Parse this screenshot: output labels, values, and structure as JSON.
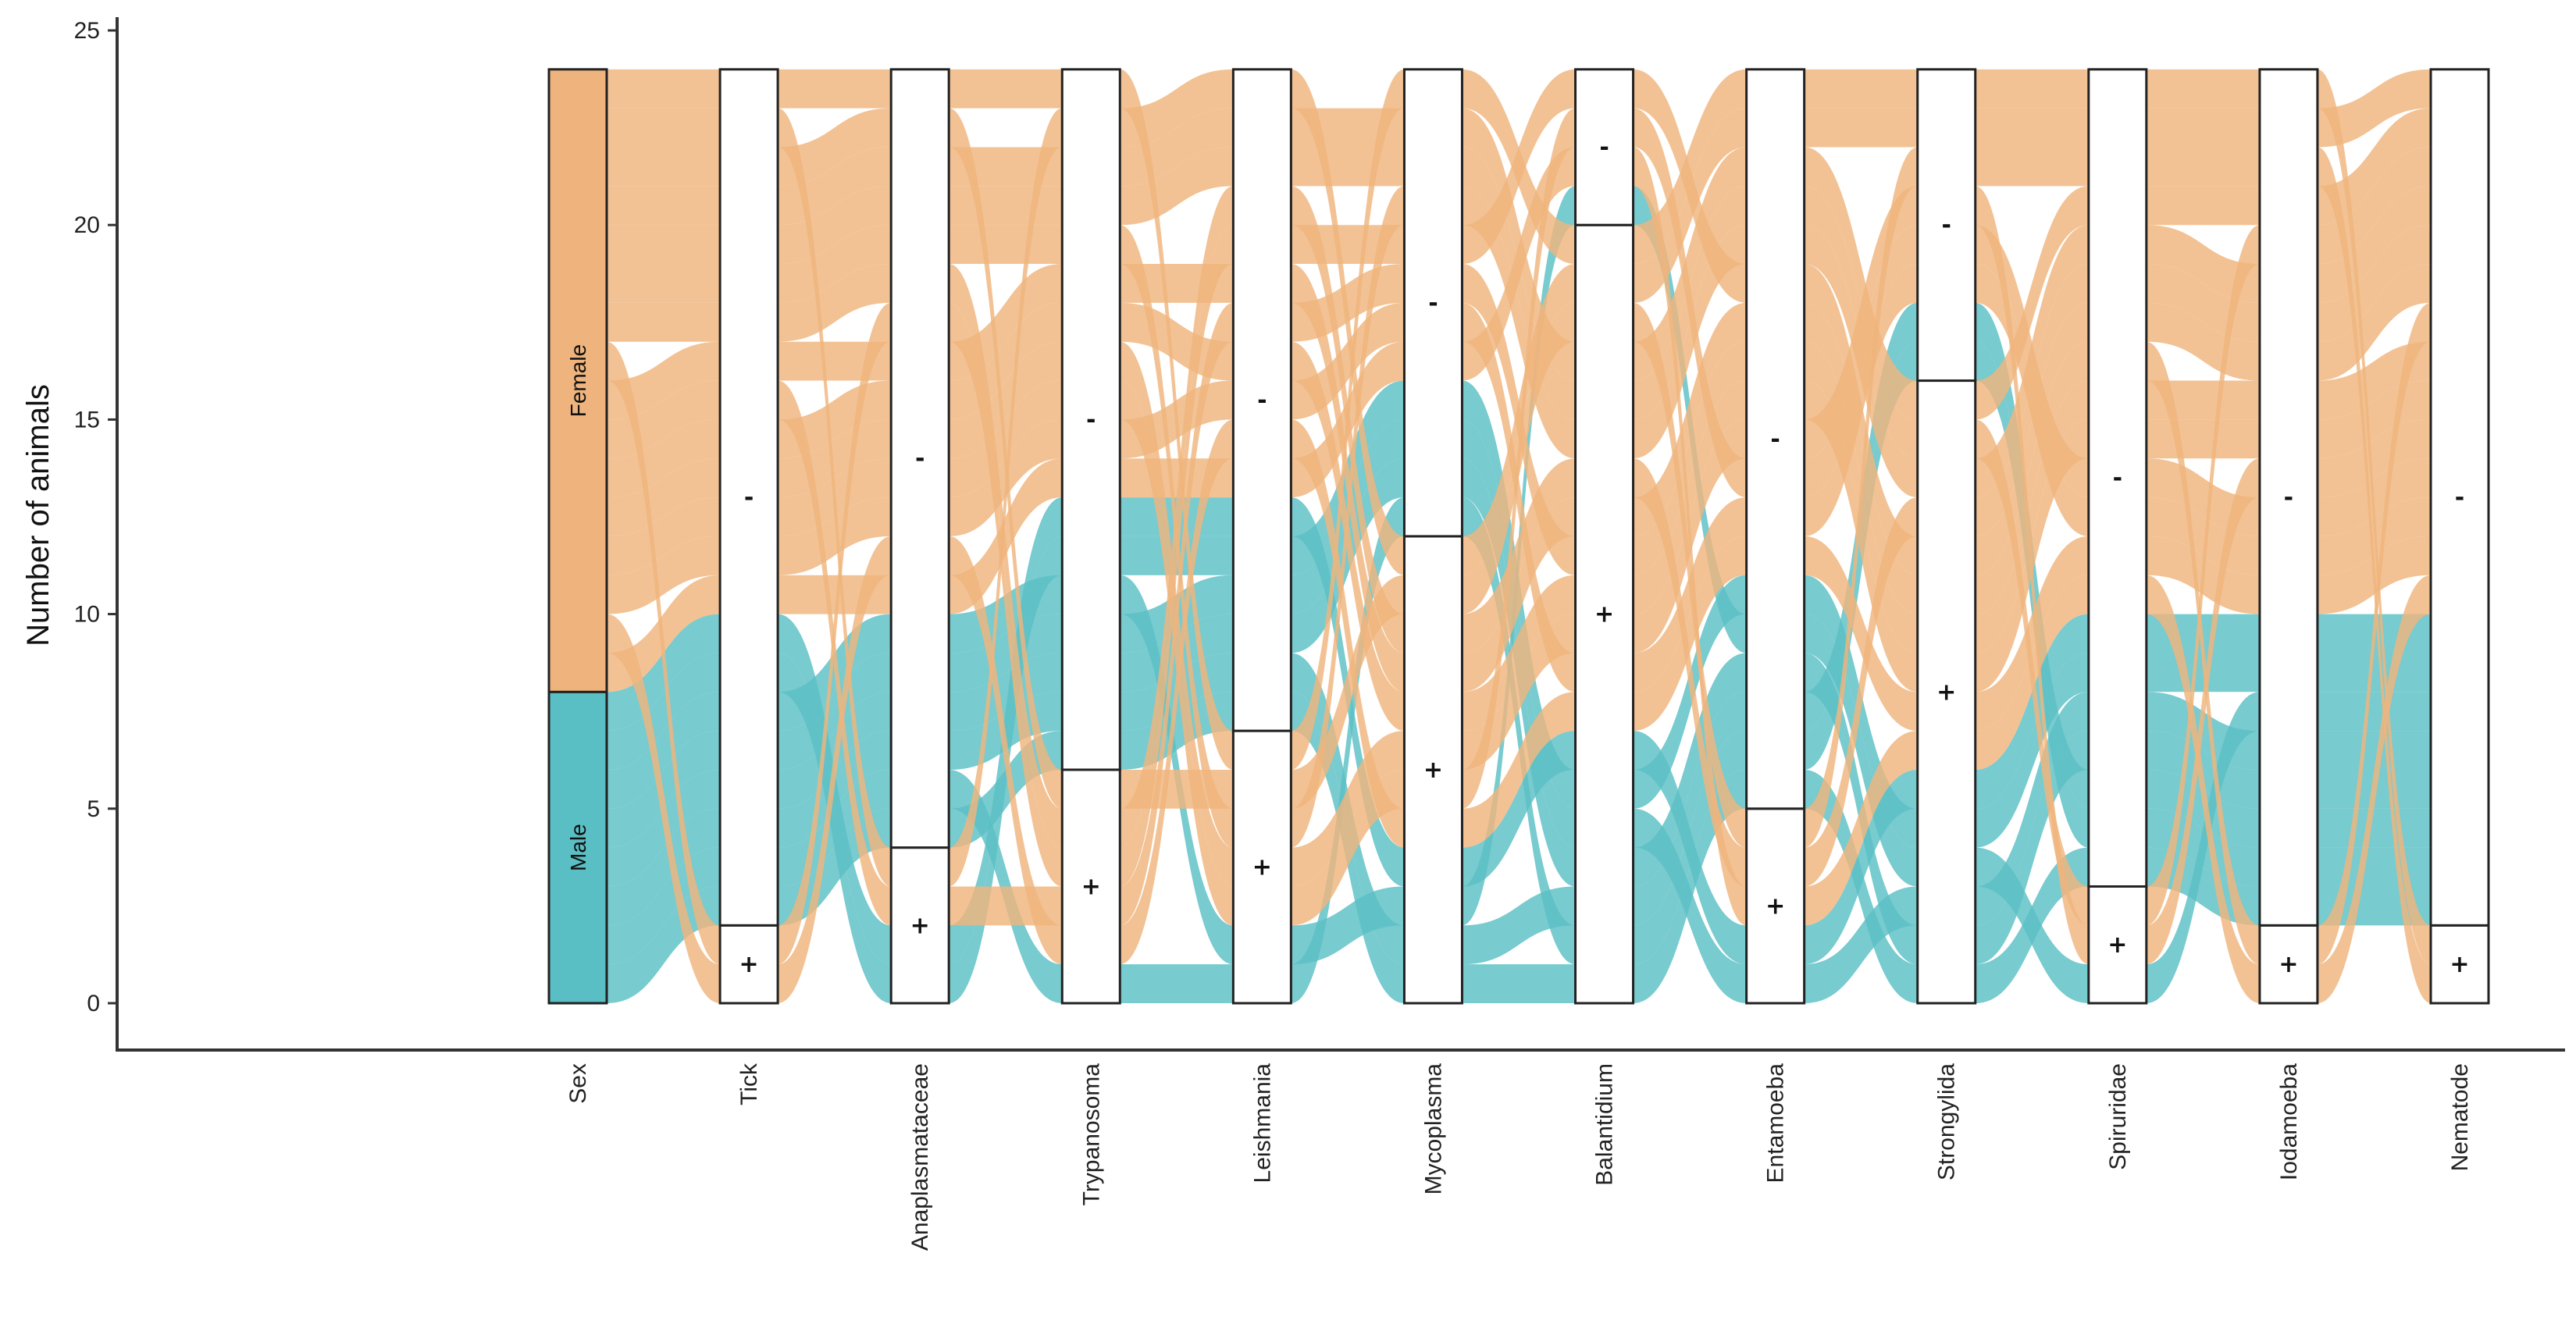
{
  "chart_data": {
    "type": "alluvial",
    "title": "",
    "xlabel": "",
    "ylabel": "Number of animals",
    "ylim": [
      0,
      25
    ],
    "yticks": [
      0,
      5,
      10,
      15,
      20,
      25
    ],
    "total_animals": 24,
    "axes": [
      {
        "name": "Sex",
        "strata": [
          {
            "label": "Male",
            "count": 8,
            "color": "#5ABFC4"
          },
          {
            "label": "Female",
            "count": 16,
            "color": "#EFB47D"
          }
        ]
      },
      {
        "name": "Tick",
        "strata": [
          {
            "label": "+",
            "count": 2
          },
          {
            "label": "-",
            "count": 22
          }
        ]
      },
      {
        "name": "Anaplasmataceae",
        "strata": [
          {
            "label": "+",
            "count": 4
          },
          {
            "label": "-",
            "count": 20
          }
        ]
      },
      {
        "name": "Trypanosoma",
        "strata": [
          {
            "label": "+",
            "count": 6
          },
          {
            "label": "-",
            "count": 18
          }
        ]
      },
      {
        "name": "Leishmania",
        "strata": [
          {
            "label": "+",
            "count": 7
          },
          {
            "label": "-",
            "count": 17
          }
        ]
      },
      {
        "name": "Mycoplasma",
        "strata": [
          {
            "label": "+",
            "count": 12
          },
          {
            "label": "-",
            "count": 12
          }
        ]
      },
      {
        "name": "Balantidium",
        "strata": [
          {
            "label": "+",
            "count": 20
          },
          {
            "label": "-",
            "count": 4
          }
        ]
      },
      {
        "name": "Entamoeba",
        "strata": [
          {
            "label": "+",
            "count": 5
          },
          {
            "label": "-",
            "count": 19
          }
        ]
      },
      {
        "name": "Strongylida",
        "strata": [
          {
            "label": "+",
            "count": 16
          },
          {
            "label": "-",
            "count": 8
          }
        ]
      },
      {
        "name": "Spiruridae",
        "strata": [
          {
            "label": "+",
            "count": 3
          },
          {
            "label": "-",
            "count": 21
          }
        ]
      },
      {
        "name": "Iodamoeba",
        "strata": [
          {
            "label": "+",
            "count": 2
          },
          {
            "label": "-",
            "count": 22
          }
        ]
      },
      {
        "name": "Nematode",
        "strata": [
          {
            "label": "+",
            "count": 2
          },
          {
            "label": "-",
            "count": 22
          }
        ]
      }
    ],
    "flow_colors": {
      "Male": "#5ABFC4",
      "Female": "#EFB47D"
    }
  }
}
